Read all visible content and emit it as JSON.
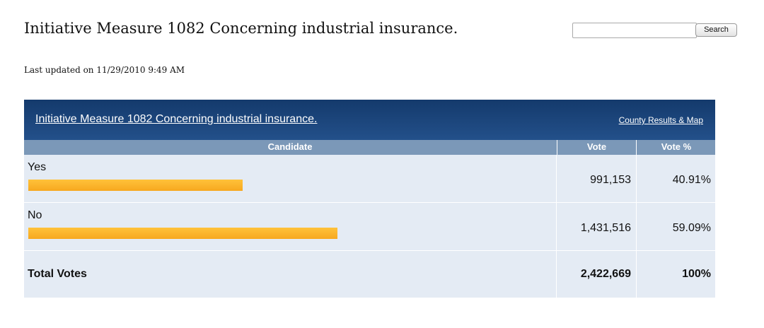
{
  "page": {
    "title": "Initiative Measure 1082 Concerning industrial insurance.",
    "last_updated": "Last updated on 11/29/2010 9:49 AM"
  },
  "search": {
    "value": "",
    "placeholder": "",
    "button_label": "Search"
  },
  "results": {
    "measure_link": "Initiative Measure 1082 Concerning industrial insurance.",
    "county_link": "County Results & Map",
    "columns": {
      "candidate": "Candidate",
      "vote": "Vote",
      "vote_pct": "Vote %"
    },
    "rows": [
      {
        "name": "Yes",
        "votes": "991,153",
        "pct": "40.91%",
        "share": 40.91
      },
      {
        "name": "No",
        "votes": "1,431,516",
        "pct": "59.09%",
        "share": 59.09
      }
    ],
    "total": {
      "label": "Total Votes",
      "votes": "2,422,669",
      "pct": "100%"
    }
  },
  "colors": {
    "header_bg": "#1b4378",
    "column_header_bg": "#7b98b8",
    "row_bg": "#e4ebf4",
    "bar": "#f9b52b"
  }
}
